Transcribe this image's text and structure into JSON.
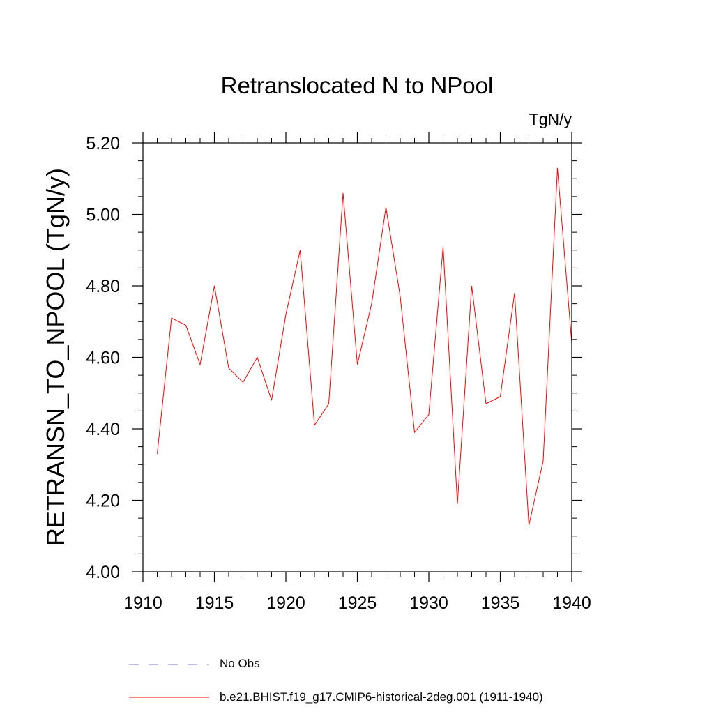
{
  "chart_data": {
    "type": "line",
    "title": "Retranslocated N to NPool",
    "units": "TgN/y",
    "ylabel": "RETRANSN_TO_NPOOL  (TgN/y)",
    "xlabel": "",
    "xlim": [
      1910,
      1940
    ],
    "ylim": [
      4.0,
      5.2
    ],
    "x_ticks": [
      1910,
      1915,
      1920,
      1925,
      1930,
      1935,
      1940
    ],
    "x_tick_labels": [
      "1910",
      "1915",
      "1920",
      "1925",
      "1930",
      "1935",
      "1940"
    ],
    "y_ticks": [
      4.0,
      4.2,
      4.4,
      4.6,
      4.8,
      5.0,
      5.2
    ],
    "y_tick_labels": [
      "4.00",
      "4.20",
      "4.40",
      "4.60",
      "4.80",
      "5.00",
      "5.20"
    ],
    "grid": false,
    "legend_position": "bottom",
    "series": [
      {
        "name": "b.e21.BHIST.f19_g17.CMIP6-historical-2deg.001 (1911-1940)",
        "color": "#ff0000",
        "x": [
          1911,
          1912,
          1913,
          1914,
          1915,
          1916,
          1917,
          1918,
          1919,
          1920,
          1921,
          1922,
          1923,
          1924,
          1925,
          1926,
          1927,
          1928,
          1929,
          1930,
          1931,
          1932,
          1933,
          1934,
          1935,
          1936,
          1937,
          1938,
          1939,
          1940
        ],
        "values": [
          4.33,
          4.71,
          4.69,
          4.58,
          4.8,
          4.57,
          4.53,
          4.6,
          4.48,
          4.72,
          4.9,
          4.41,
          4.47,
          5.06,
          4.58,
          4.75,
          5.02,
          4.77,
          4.39,
          4.44,
          4.91,
          4.19,
          4.8,
          4.47,
          4.49,
          4.78,
          4.13,
          4.31,
          5.13,
          4.64
        ]
      }
    ],
    "legend": [
      {
        "label": "No Obs",
        "color": "#7b72c8",
        "style": "dashed"
      },
      {
        "label": "b.e21.BHIST.f19_g17.CMIP6-historical-2deg.001 (1911-1940)",
        "color": "#ff0000",
        "style": "solid"
      }
    ]
  }
}
